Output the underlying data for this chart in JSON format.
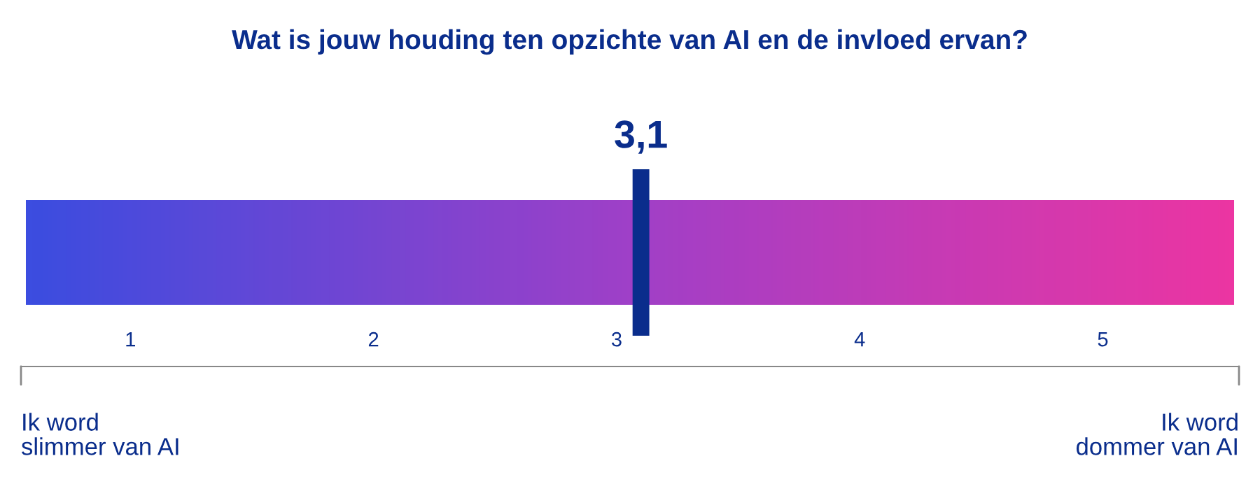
{
  "chart_data": {
    "type": "bar",
    "orientation": "horizontal",
    "title": "Wat is jouw houding ten opzichte van AI en de invloed ervan?",
    "categories": [
      null
    ],
    "base": [
      0.57
    ],
    "values": [
      4.97
    ],
    "colors": [
      "#a040c8"
    ],
    "xlim": [
      0.55,
      5.56
    ],
    "xticks": [
      1,
      2,
      3,
      4,
      5
    ],
    "ref_lines": [
      {
        "axis": "x",
        "value": 3.1,
        "label": "3,1",
        "color": "#0a2d8c"
      }
    ],
    "annotations": [
      "Ik word\nslimmer van AI",
      "Ik word\ndommer van AI"
    ]
  }
}
